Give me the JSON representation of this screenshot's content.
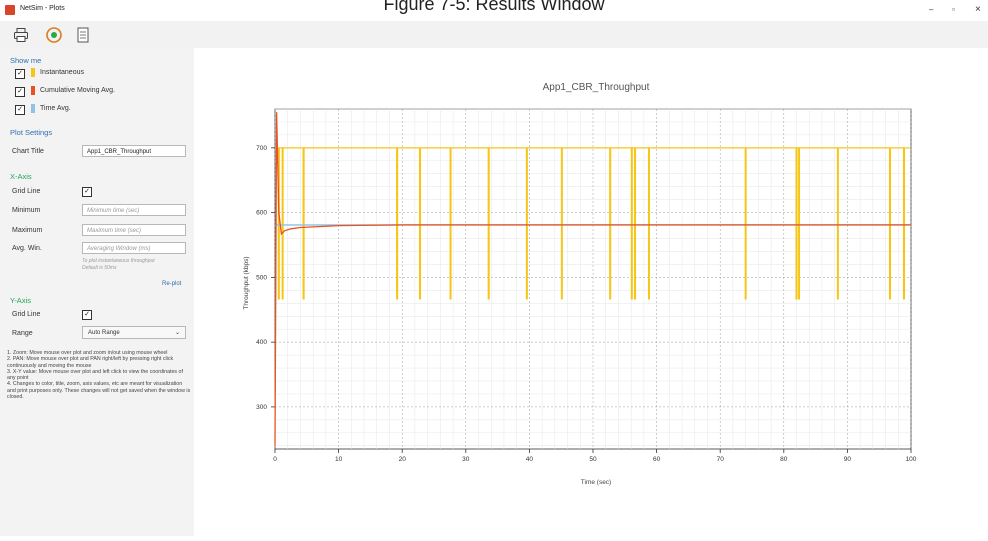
{
  "caption": "Figure 7-5: Results Window",
  "window": {
    "title": "NetSim - Plots",
    "minimize": "–",
    "maximize": "▫",
    "close": "×"
  },
  "toolbar": {
    "icons": [
      "print-icon",
      "refresh-icon",
      "document-icon"
    ]
  },
  "sidebar": {
    "show_me": "Show me",
    "series_toggles": [
      {
        "label": "Instantaneous",
        "checked": true,
        "color": "#f5c518"
      },
      {
        "label": "Cumulative Moving Avg.",
        "checked": true,
        "color": "#e8531f"
      },
      {
        "label": "Time Avg.",
        "checked": true,
        "color": "#8fc3e8"
      }
    ],
    "plot_settings": "Plot Settings",
    "chart_title_label": "Chart Title",
    "chart_title_value": "App1_CBR_Throughput",
    "x_axis": {
      "heading": "X-Axis",
      "grid_line_label": "Grid Line",
      "grid_checked": "✓",
      "minimum_label": "Minimum",
      "minimum_placeholder": "Minimum time (sec)",
      "maximum_label": "Maximum",
      "maximum_placeholder": "Maximum time (sec)",
      "avg_win_label": "Avg. Win.",
      "avg_win_placeholder": "Averaging Window (ms)",
      "hint_line1": "To plot instantaneous throughput",
      "hint_line2": "Default is 50ms",
      "replot": "Re-plot"
    },
    "y_axis": {
      "heading": "Y-Axis",
      "grid_line_label": "Grid Line",
      "grid_checked": "✓",
      "range_label": "Range",
      "range_value": "Auto Range"
    },
    "notes": [
      "1. Zoom: Move mouse over plot and zoom in/out using mouse wheel",
      "2. PAN: Move mouse over plot and PAN right/left by pressing right click continuously and moving the mouse",
      "3. X-Y value: Move mouse over plot and left click to view the coordinates of any point",
      "4. Changes to color, title, zoom, axis values, etc are meant for visualization and print purposes only. These changes will not get saved when the window is closed."
    ]
  },
  "chart_data": {
    "type": "line",
    "title": "App1_CBR_Throughput",
    "xlabel": "Time (sec)",
    "ylabel": "Throughput (kbps)",
    "xlim": [
      0,
      100
    ],
    "ylim": [
      235,
      760
    ],
    "xticks": [
      0,
      10,
      20,
      30,
      40,
      50,
      60,
      70,
      80,
      90,
      100
    ],
    "yticks": [
      300,
      400,
      500,
      600,
      700
    ],
    "grid": true,
    "series": [
      {
        "name": "Instantaneous",
        "color": "#f5c518",
        "base": 700,
        "dip_value": 467,
        "dips": [
          0.6,
          1.2,
          4.5,
          19.2,
          22.8,
          27.6,
          33.6,
          39.6,
          45.1,
          52.7,
          56.1,
          56.6,
          58.8,
          74.0,
          82.0,
          82.4,
          88.5,
          96.7,
          98.9
        ]
      },
      {
        "name": "Cumulative Moving Avg.",
        "color": "#e8531f",
        "x": [
          0,
          0.25,
          0.6,
          1.0,
          1.5,
          2.5,
          4,
          6,
          10,
          20,
          40,
          100
        ],
        "y": [
          240,
          755,
          600,
          567,
          572,
          575,
          577,
          578,
          580,
          581,
          581,
          581
        ]
      },
      {
        "name": "Time Avg.",
        "color": "#8fc3e8",
        "x": [
          0,
          100
        ],
        "y": [
          581,
          581
        ]
      }
    ]
  }
}
